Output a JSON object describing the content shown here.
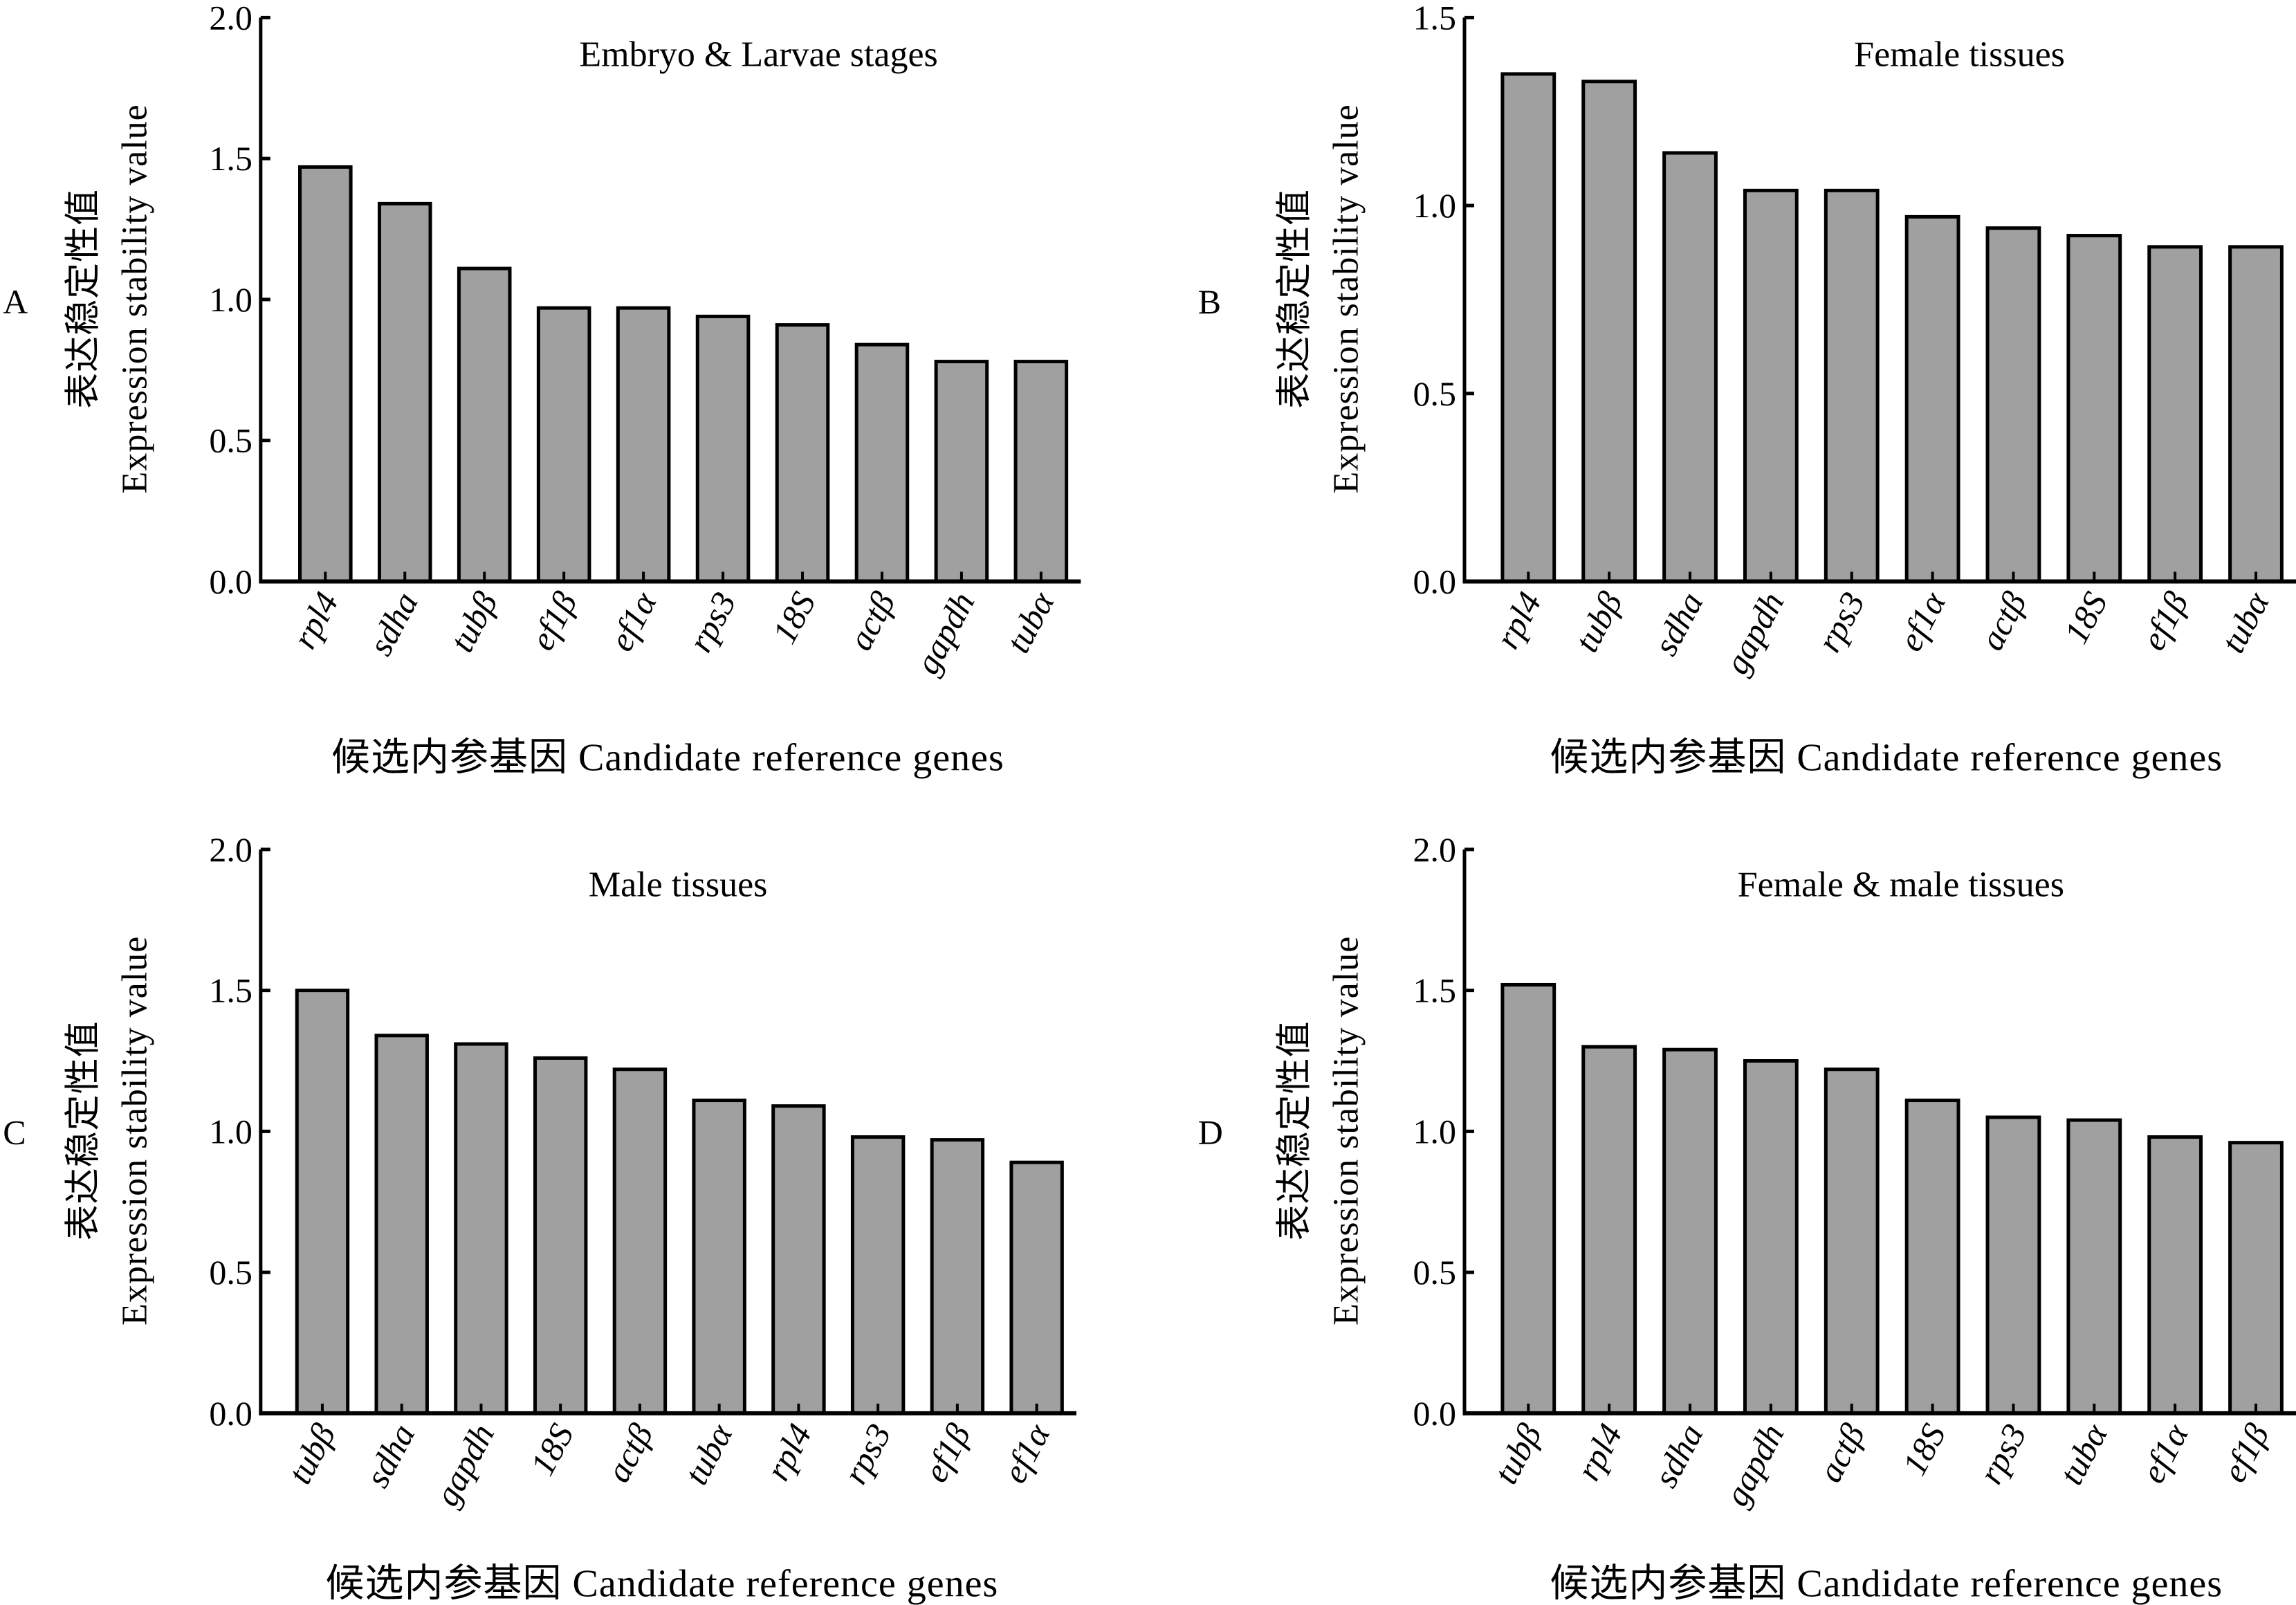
{
  "figure": {
    "bar_fill": "#a0a0a0",
    "bar_stroke": "#000000",
    "axis_color": "#000000"
  },
  "chart_data": [
    {
      "panel": "A",
      "type": "bar",
      "title": "Embryo & Larvae stages",
      "ylabel_cn": "表达稳定性值",
      "ylabel_en": "Expression stability value",
      "xlabel": "候选内参基因 Candidate reference genes",
      "ylim": [
        0,
        2.0
      ],
      "yticks": [
        "0.0",
        "0.5",
        "1.0",
        "1.5",
        "2.0"
      ],
      "ytick_values": [
        0,
        0.5,
        1.0,
        1.5,
        2.0
      ],
      "grid": false,
      "categories": [
        "rpl4",
        "sdha",
        "tubβ",
        "ef1β",
        "ef1α",
        "rps3",
        "18S",
        "actβ",
        "gapdh",
        "tubα"
      ],
      "values": [
        1.47,
        1.34,
        1.11,
        0.97,
        0.97,
        0.94,
        0.91,
        0.84,
        0.78,
        0.78
      ]
    },
    {
      "panel": "B",
      "type": "bar",
      "title": "Female tissues",
      "ylabel_cn": "表达稳定性值",
      "ylabel_en": "Expression stability value",
      "xlabel": "候选内参基因 Candidate reference genes",
      "ylim": [
        0,
        1.5
      ],
      "yticks": [
        "0.0",
        "0.5",
        "1.0",
        "1.5"
      ],
      "ytick_values": [
        0,
        0.5,
        1.0,
        1.5
      ],
      "grid": false,
      "categories": [
        "rpl4",
        "tubβ",
        "sdha",
        "gapdh",
        "rps3",
        "ef1α",
        "actβ",
        "18S",
        "ef1β",
        "tubα"
      ],
      "values": [
        1.35,
        1.33,
        1.14,
        1.04,
        1.04,
        0.97,
        0.94,
        0.92,
        0.89,
        0.89
      ]
    },
    {
      "panel": "C",
      "type": "bar",
      "title": "Male tissues",
      "ylabel_cn": "表达稳定性值",
      "ylabel_en": "Expression stability value",
      "xlabel": "候选内参基因 Candidate reference genes",
      "ylim": [
        0,
        2.0
      ],
      "yticks": [
        "0.0",
        "0.5",
        "1.0",
        "1.5",
        "2.0"
      ],
      "ytick_values": [
        0,
        0.5,
        1.0,
        1.5,
        2.0
      ],
      "grid": false,
      "categories": [
        "tubβ",
        "sdha",
        "gapdh",
        "18S",
        "actβ",
        "tubα",
        "rpl4",
        "rps3",
        "ef1β",
        "ef1α"
      ],
      "values": [
        1.5,
        1.34,
        1.31,
        1.26,
        1.22,
        1.11,
        1.09,
        0.98,
        0.97,
        0.89
      ]
    },
    {
      "panel": "D",
      "type": "bar",
      "title": "Female & male tissues",
      "ylabel_cn": "表达稳定性值",
      "ylabel_en": "Expression stability value",
      "xlabel": "候选内参基因 Candidate reference genes",
      "ylim": [
        0,
        2.0
      ],
      "yticks": [
        "0.0",
        "0.5",
        "1.0",
        "1.5",
        "2.0"
      ],
      "ytick_values": [
        0,
        0.5,
        1.0,
        1.5,
        2.0
      ],
      "grid": false,
      "categories": [
        "tubβ",
        "rpl4",
        "sdha",
        "gapdh",
        "actβ",
        "18S",
        "rps3",
        "tubα",
        "ef1α",
        "ef1β"
      ],
      "values": [
        1.52,
        1.3,
        1.29,
        1.25,
        1.22,
        1.11,
        1.05,
        1.04,
        0.98,
        0.96
      ]
    }
  ]
}
